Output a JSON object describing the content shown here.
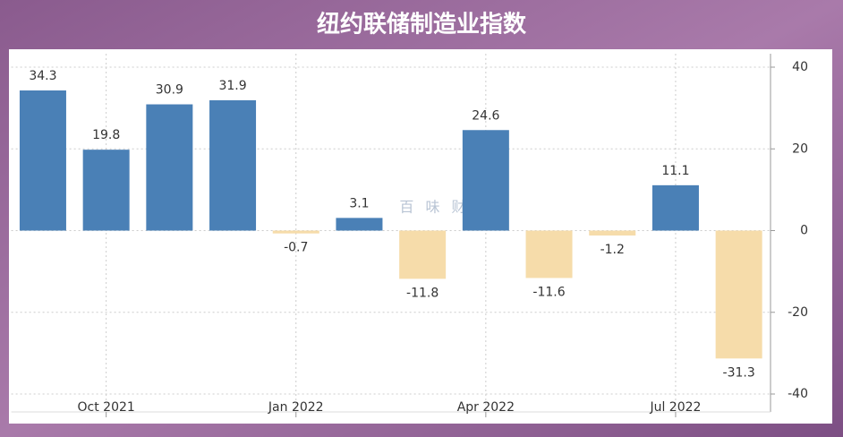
{
  "chart_data": {
    "type": "bar",
    "title": "纽约联储制造业指数",
    "watermark": "百 味 财 经",
    "categories": [
      null,
      "Oct 2021",
      null,
      null,
      "Jan 2022",
      null,
      null,
      "Apr 2022",
      null,
      null,
      "Jul 2022",
      null
    ],
    "values": [
      34.3,
      19.8,
      30.9,
      31.9,
      -0.7,
      3.1,
      -11.8,
      24.6,
      -11.6,
      -1.2,
      11.1,
      -31.3
    ],
    "color": "#4a80b6",
    "negative_color": "#f6dcaa",
    "ylim": [
      -40,
      40
    ],
    "yticks": [
      40,
      20,
      0,
      -20,
      -40
    ],
    "grid": true,
    "y_axis_side": "right"
  }
}
